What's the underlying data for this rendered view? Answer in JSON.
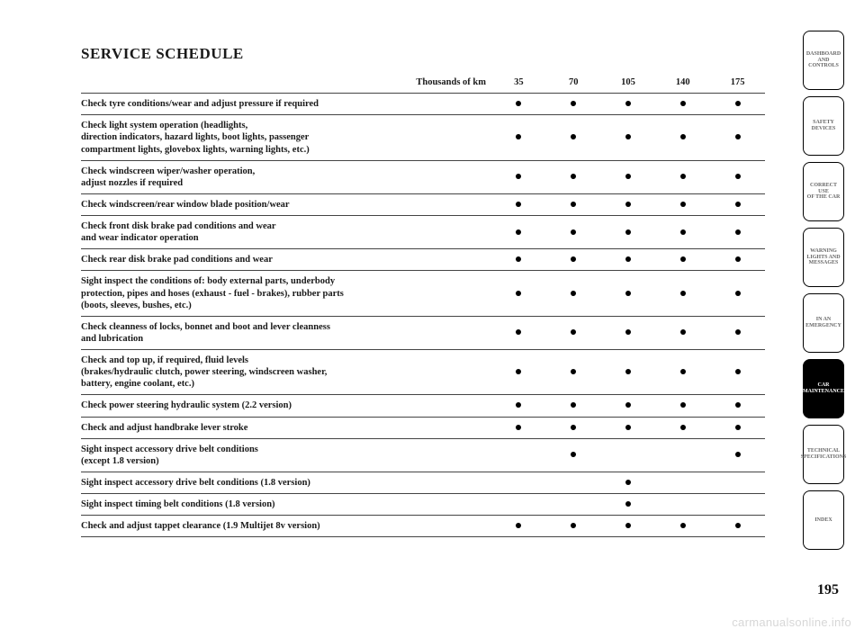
{
  "title": "SERVICE SCHEDULE",
  "table": {
    "header_label": "Thousands of km",
    "columns": [
      "35",
      "70",
      "105",
      "140",
      "175"
    ],
    "rows": [
      {
        "label": "Check tyre conditions/wear and adjust pressure if required",
        "marks": [
          1,
          1,
          1,
          1,
          1
        ]
      },
      {
        "label": "Check light system operation (headlights,\ndirection indicators, hazard lights, boot lights, passenger\ncompartment lights, glovebox lights, warning lights, etc.)",
        "marks": [
          1,
          1,
          1,
          1,
          1
        ]
      },
      {
        "label": "Check windscreen wiper/washer operation,\nadjust nozzles if required",
        "marks": [
          1,
          1,
          1,
          1,
          1
        ]
      },
      {
        "label": "Check windscreen/rear window blade position/wear",
        "marks": [
          1,
          1,
          1,
          1,
          1
        ]
      },
      {
        "label": "Check front disk brake pad conditions and wear\nand wear indicator operation",
        "marks": [
          1,
          1,
          1,
          1,
          1
        ]
      },
      {
        "label": "Check rear disk brake pad conditions and wear",
        "marks": [
          1,
          1,
          1,
          1,
          1
        ]
      },
      {
        "label": "Sight inspect the conditions of: body external parts, underbody\nprotection, pipes and hoses (exhaust - fuel - brakes), rubber parts\n(boots, sleeves, bushes, etc.)",
        "marks": [
          1,
          1,
          1,
          1,
          1
        ]
      },
      {
        "label": "Check cleanness of locks, bonnet and boot and lever cleanness\nand lubrication",
        "marks": [
          1,
          1,
          1,
          1,
          1
        ]
      },
      {
        "label": "Check and top up, if required, fluid levels\n(brakes/hydraulic clutch, power steering, windscreen washer,\nbattery, engine coolant, etc.)",
        "marks": [
          1,
          1,
          1,
          1,
          1
        ]
      },
      {
        "label": "Check power steering hydraulic system (2.2 version)",
        "marks": [
          1,
          1,
          1,
          1,
          1
        ]
      },
      {
        "label": "Check and adjust handbrake lever stroke",
        "marks": [
          1,
          1,
          1,
          1,
          1
        ]
      },
      {
        "label": "Sight inspect accessory drive belt conditions\n(except 1.8 version)",
        "marks": [
          0,
          1,
          0,
          0,
          1
        ]
      },
      {
        "label": "Sight inspect accessory drive belt conditions (1.8 version)",
        "marks": [
          0,
          0,
          1,
          0,
          0
        ]
      },
      {
        "label": "Sight inspect timing belt conditions (1.8 version)",
        "marks": [
          0,
          0,
          1,
          0,
          0
        ]
      },
      {
        "label": "Check and adjust tappet clearance (1.9 Multijet 8v version)",
        "marks": [
          1,
          1,
          1,
          1,
          1
        ]
      }
    ]
  },
  "tabs": {
    "items": [
      {
        "label": "DASHBOARD\nAND CONTROLS",
        "active": false
      },
      {
        "label": "SAFETY\nDEVICES",
        "active": false
      },
      {
        "label": "CORRECT USE\nOF THE CAR",
        "active": false
      },
      {
        "label": "WARNING\nLIGHTS AND\nMESSAGES",
        "active": false
      },
      {
        "label": "IN AN\nEMERGENCY",
        "active": false
      },
      {
        "label": "CAR\nMAINTENANCE",
        "active": true
      },
      {
        "label": "TECHNICAL\nSPECIFICATIONS",
        "active": false
      },
      {
        "label": "INDEX",
        "active": false
      }
    ]
  },
  "page_number": "195",
  "watermark": "carmanualsonline.info"
}
